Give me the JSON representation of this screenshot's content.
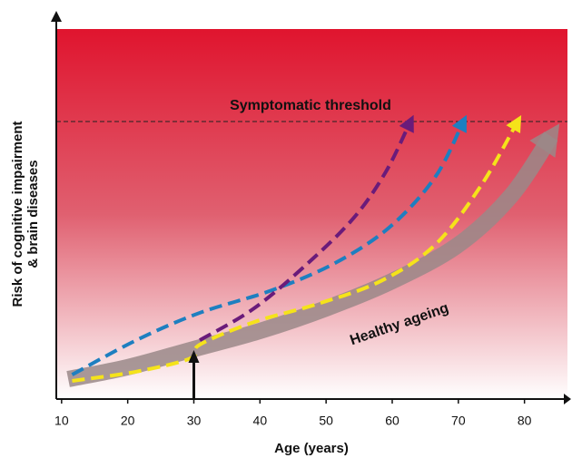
{
  "chart_data": {
    "type": "line",
    "x_label": "Age (years)",
    "y_label": [
      "Risk of cognitive impairment",
      "& brain diseases"
    ],
    "xlim": [
      9.2,
      86.5
    ],
    "xticks": [
      10,
      20,
      30,
      40,
      50,
      60,
      70,
      80
    ],
    "ylim": [
      0,
      100
    ],
    "threshold": {
      "value": 75,
      "label": "Symptomatic threshold"
    },
    "marker_x": 30,
    "series": [
      {
        "color": "#6a1b7a",
        "dashed": true,
        "x": [
          30.9,
          39.1,
          47.3,
          54.2,
          59,
          62.7
        ],
        "values": [
          15.9,
          24.5,
          36.8,
          49,
          61.3,
          74.8
        ]
      },
      {
        "color": "#1e7fc0",
        "dashed": true,
        "x": [
          11.6,
          21.3,
          30.9,
          41.8,
          51.4,
          59.7,
          66.5,
          70.7
        ],
        "values": [
          6.6,
          15.9,
          23.3,
          29.4,
          36.8,
          46.6,
          60,
          74.8
        ]
      },
      {
        "color": "#f5e31a",
        "dashed": true,
        "x": [
          11.6,
          21.3,
          29.5,
          30.9,
          39.1,
          48.7,
          58.3,
          66.5,
          73.4,
          78.9
        ],
        "values": [
          4.9,
          7.4,
          11,
          14.7,
          20.8,
          25.7,
          31.9,
          41.7,
          57.6,
          74.8
        ]
      },
      {
        "name": "Healthy ageing",
        "color": "#9a8888",
        "dashed": false,
        "x": [
          11,
          20,
          30,
          40,
          50,
          60,
          70,
          78,
          84
        ],
        "values": [
          5.4,
          8.6,
          13.5,
          18.4,
          24.5,
          31.9,
          41.7,
          55,
          71
        ]
      }
    ]
  }
}
